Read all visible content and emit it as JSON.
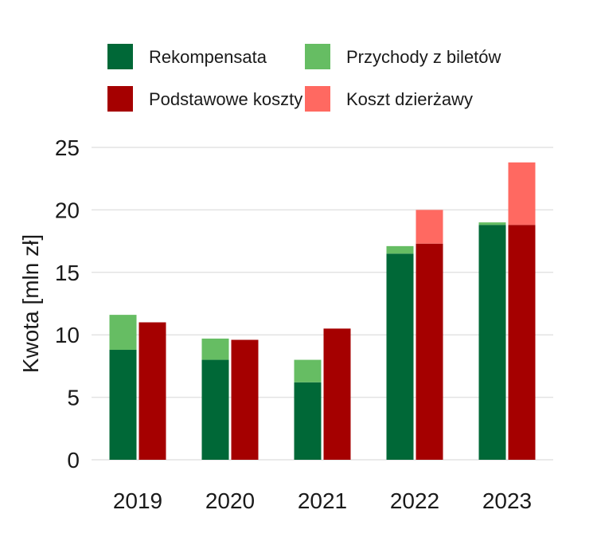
{
  "chart_data": {
    "type": "bar",
    "layout": "grouped-stacked",
    "categories": [
      "2019",
      "2020",
      "2021",
      "2022",
      "2023"
    ],
    "ylabel": "Kwota [mln zł]",
    "xlabel": "",
    "ylim": [
      0,
      25
    ],
    "yticks": [
      0,
      5,
      10,
      15,
      20,
      25
    ],
    "grid": true,
    "legend_position": "top",
    "stacks": [
      {
        "series": [
          {
            "name": "Rekompensata",
            "color": "#006837",
            "values": [
              8.8,
              8.0,
              6.2,
              16.5,
              18.8
            ]
          },
          {
            "name": "Przychody z biletów",
            "color": "#66bd63",
            "values": [
              2.8,
              1.7,
              1.8,
              0.6,
              0.2
            ]
          }
        ]
      },
      {
        "series": [
          {
            "name": "Podstawowe koszty",
            "color": "#a50000",
            "values": [
              11.0,
              9.6,
              10.5,
              17.3,
              18.8
            ]
          },
          {
            "name": "Koszt dzierżawy",
            "color": "#ff6961",
            "values": [
              0,
              0,
              0,
              2.7,
              5.0
            ]
          }
        ]
      }
    ],
    "legend": [
      {
        "name": "Rekompensata",
        "color": "#006837"
      },
      {
        "name": "Przychody z biletów",
        "color": "#66bd63"
      },
      {
        "name": "Podstawowe koszty",
        "color": "#a50000"
      },
      {
        "name": "Koszt dzierżawy",
        "color": "#ff6961"
      }
    ]
  }
}
